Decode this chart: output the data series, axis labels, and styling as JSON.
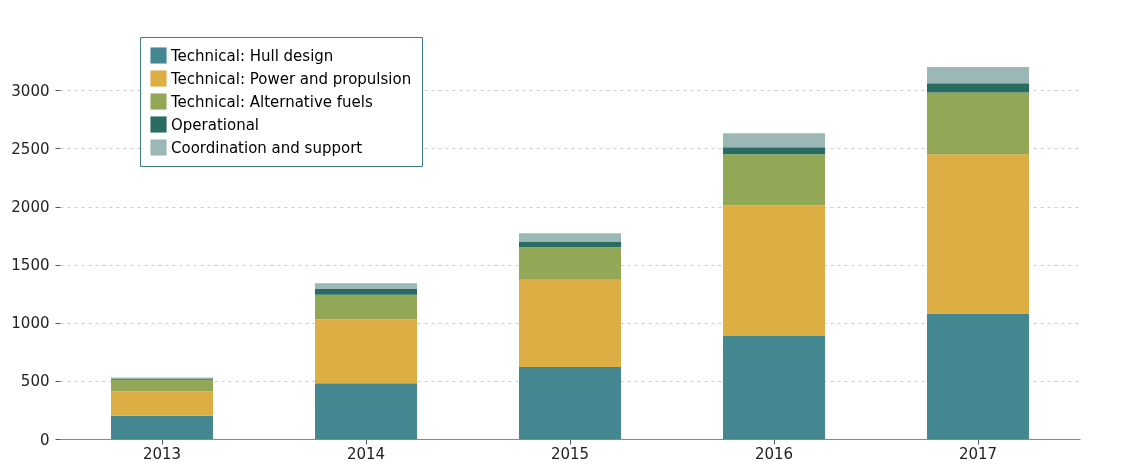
{
  "chart_data": {
    "type": "bar",
    "stacked": true,
    "categories": [
      "2013",
      "2014",
      "2015",
      "2016",
      "2017"
    ],
    "series": [
      {
        "name": "Technical: Hull design",
        "color": "#458790",
        "values": [
          200,
          480,
          620,
          890,
          1080
        ]
      },
      {
        "name": "Technical: Power and propulsion",
        "color": "#dcae44",
        "values": [
          210,
          550,
          750,
          1120,
          1370
        ]
      },
      {
        "name": "Technical: Alternative fuels",
        "color": "#93a857",
        "values": [
          100,
          210,
          280,
          440,
          530
        ]
      },
      {
        "name": "Operational",
        "color": "#2a6b62",
        "values": [
          10,
          50,
          50,
          60,
          80
        ]
      },
      {
        "name": "Coordination and support",
        "color": "#9bb7b6",
        "values": [
          10,
          50,
          70,
          120,
          140
        ]
      }
    ],
    "ylim": [
      0,
      3200
    ],
    "yticks": [
      0,
      500,
      1000,
      1500,
      2000,
      2500,
      3000
    ],
    "grid": "y",
    "legend": "top left"
  }
}
